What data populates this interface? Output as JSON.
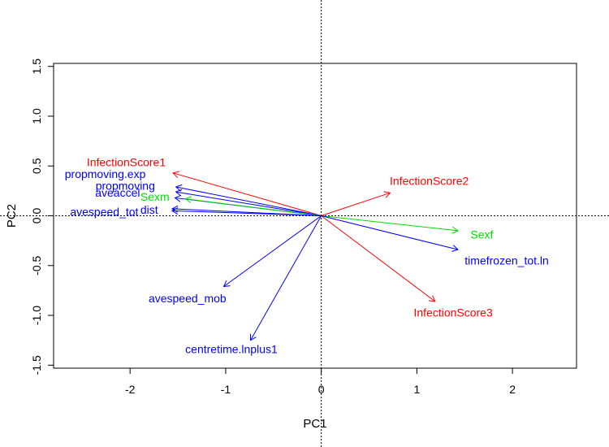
{
  "chart_data": {
    "type": "biplot",
    "xlabel": "PC1",
    "ylabel": "PC2",
    "xlim": [
      -2.8,
      2.67
    ],
    "ylim": [
      -1.53,
      1.53
    ],
    "x_ticks": [
      {
        "value": -2,
        "label": "-2"
      },
      {
        "value": -1,
        "label": "-1"
      },
      {
        "value": 0,
        "label": "0"
      },
      {
        "value": 1,
        "label": "1"
      },
      {
        "value": 2,
        "label": "2"
      }
    ],
    "y_ticks": [
      {
        "value": -1.5,
        "label": "-1.5"
      },
      {
        "value": -1.0,
        "label": "-1.0"
      },
      {
        "value": -0.5,
        "label": "-0.5"
      },
      {
        "value": 0.0,
        "label": "0.0"
      },
      {
        "value": 0.5,
        "label": "0.5"
      },
      {
        "value": 1.0,
        "label": "1.0"
      },
      {
        "value": 1.5,
        "label": "1.5"
      }
    ],
    "grid": false,
    "reference_lines": {
      "x": 0,
      "y": 0,
      "style": "dotted"
    },
    "vectors": [
      {
        "name": "InfectionScore1",
        "x": -1.55,
        "y": 0.43,
        "label_x": -2.04,
        "label_y": 0.53,
        "color": "#ff0000"
      },
      {
        "name": "propmoving.exp",
        "x": -1.52,
        "y": 0.29,
        "label_x": -2.26,
        "label_y": 0.41,
        "color": "#0000ff"
      },
      {
        "name": "propmoving",
        "x": -1.52,
        "y": 0.24,
        "label_x": -2.05,
        "label_y": 0.29,
        "color": "#0000ff"
      },
      {
        "name": "aveaccel",
        "x": -1.53,
        "y": 0.18,
        "label_x": -2.13,
        "label_y": 0.22,
        "color": "#0000ff"
      },
      {
        "name": "Sexm",
        "x": -1.42,
        "y": 0.17,
        "label_x": -1.74,
        "label_y": 0.18,
        "color": "#00dd00"
      },
      {
        "name": "avespeed_tot",
        "x": -1.56,
        "y": 0.07,
        "label_x": -2.27,
        "label_y": 0.03,
        "color": "#0000ff"
      },
      {
        "name": "dist",
        "x": -1.56,
        "y": 0.05,
        "label_x": -1.8,
        "label_y": 0.05,
        "color": "#0000ff"
      },
      {
        "name": "InfectionScore2",
        "x": 0.72,
        "y": 0.23,
        "label_x": 1.13,
        "label_y": 0.34,
        "color": "#ff0000"
      },
      {
        "name": "Sexf",
        "x": 1.43,
        "y": -0.15,
        "label_x": 1.68,
        "label_y": -0.2,
        "color": "#00dd00"
      },
      {
        "name": "timefrozen_tot.ln",
        "x": 1.43,
        "y": -0.34,
        "label_x": 1.94,
        "label_y": -0.46,
        "color": "#0000ff"
      },
      {
        "name": "avespeed_mob",
        "x": -1.02,
        "y": -0.71,
        "label_x": -1.4,
        "label_y": -0.84,
        "color": "#0000ff"
      },
      {
        "name": "centretime.lnplus1",
        "x": -0.74,
        "y": -1.25,
        "label_x": -0.94,
        "label_y": -1.35,
        "color": "#0000ff"
      },
      {
        "name": "InfectionScore3",
        "x": 1.19,
        "y": -0.86,
        "label_x": 1.38,
        "label_y": -0.98,
        "color": "#ff0000"
      }
    ]
  }
}
